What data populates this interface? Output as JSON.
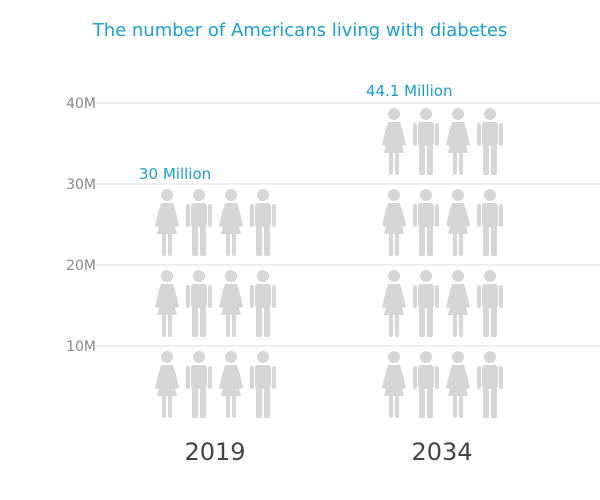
{
  "chart_data": {
    "type": "pictograph",
    "title": "The number of Americans living with diabetes",
    "categories": [
      "2019",
      "2034"
    ],
    "values": [
      30,
      44.1
    ],
    "data_labels": [
      "30 Million",
      "44.1 Million"
    ],
    "unit_per_row": 10,
    "icons_per_row": [
      "female-icon",
      "male-icon",
      "female-icon",
      "male-icon"
    ],
    "yticks": [
      10,
      20,
      30,
      40
    ],
    "ytick_labels": [
      "10M",
      "20M",
      "30M",
      "40M"
    ],
    "ylim": [
      0,
      40
    ],
    "grid": true,
    "colors": {
      "title": "#1a9fd0",
      "label": "#1a9fd0",
      "icon": "#d6d6d6",
      "grid": "#e2e2e2",
      "axis_text": "#888888",
      "category_text": "#444444"
    }
  }
}
